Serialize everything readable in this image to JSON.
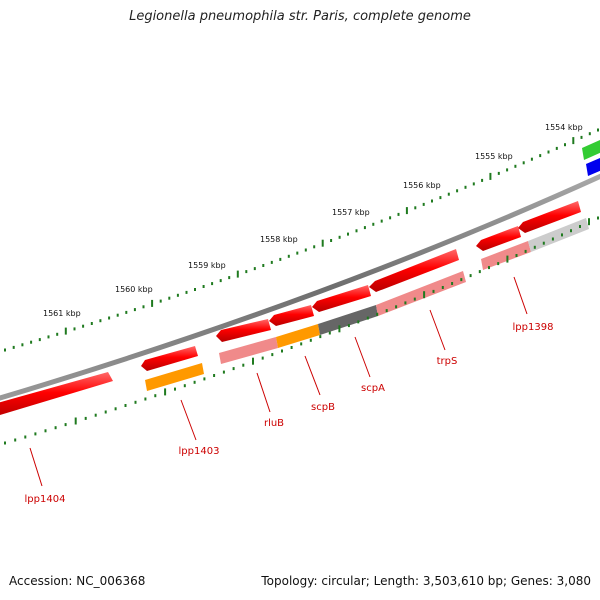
{
  "title": "Legionella pneumophila str. Paris, complete genome",
  "accession": "Accession: NC_006368",
  "topology": "Topology: circular; Length: 3,503,610 bp; Genes: 3,080",
  "colors": {
    "backbone": "#808080",
    "tick": "#1f7a1f",
    "cds": "#ee0000",
    "cds_light": "#f08a8a",
    "orange": "#ff9900",
    "dark": "#666666",
    "gray": "#cccccc",
    "green": "#33cc33",
    "blue": "#0000ee",
    "label": "#cc0000"
  },
  "scale": {
    "unit": "kbp",
    "ticks": [
      {
        "kbp": 1561,
        "label": "1561 kbp"
      },
      {
        "kbp": 1560,
        "label": "1560 kbp"
      },
      {
        "kbp": 1559,
        "label": "1559 kbp"
      },
      {
        "kbp": 1558,
        "label": "1558 kbp"
      },
      {
        "kbp": 1557,
        "label": "1557 kbp"
      },
      {
        "kbp": 1556,
        "label": "1556 kbp"
      },
      {
        "kbp": 1555,
        "label": "1555 kbp"
      },
      {
        "kbp": 1554,
        "label": "1554 kbp"
      }
    ]
  },
  "genes": [
    {
      "name": "lpp1404"
    },
    {
      "name": "lpp1403"
    },
    {
      "name": "rluB"
    },
    {
      "name": "scpB"
    },
    {
      "name": "scpA"
    },
    {
      "name": "trpS"
    },
    {
      "name": "lpp1398"
    }
  ]
}
